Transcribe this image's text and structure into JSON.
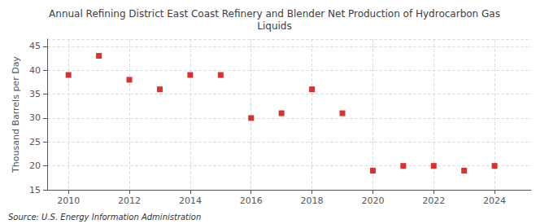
{
  "chart_data": {
    "type": "scatter",
    "title": "Annual Refining District East Coast Refinery and Blender Net Production of Hydrocarbon Gas\nLiquids",
    "ylabel": "Thousand Barrels per Day",
    "source": "Source: U.S. Energy Information Administration",
    "x": [
      2010,
      2011,
      2012,
      2013,
      2014,
      2015,
      2016,
      2017,
      2018,
      2019,
      2020,
      2021,
      2022,
      2023,
      2024
    ],
    "values": [
      39,
      43,
      38,
      36,
      39,
      39,
      30,
      31,
      36,
      31,
      19,
      20,
      20,
      19,
      20
    ],
    "color": "#cc0000",
    "marker": "square",
    "xlim": [
      2009.3,
      2025.2
    ],
    "xticks": [
      2010,
      2012,
      2014,
      2016,
      2018,
      2020,
      2022,
      2024
    ],
    "ylim": [
      15,
      46.5
    ],
    "yticks": [
      15,
      20,
      25,
      30,
      35,
      40,
      45
    ],
    "grid": true
  }
}
